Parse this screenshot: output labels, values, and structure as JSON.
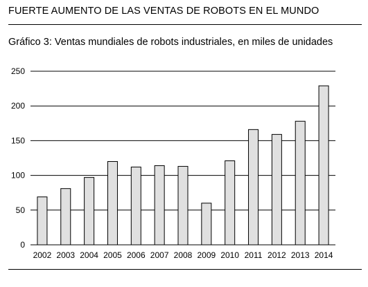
{
  "header": {
    "title": "FUERTE AUMENTO DE LAS VENTAS DE ROBOTS EN EL MUNDO"
  },
  "chart_data": {
    "type": "bar",
    "title": "Gráfico 3: Ventas mundiales de robots industriales, en miles de unidades",
    "xlabel": "",
    "ylabel": "",
    "categories": [
      "2002",
      "2003",
      "2004",
      "2005",
      "2006",
      "2007",
      "2008",
      "2009",
      "2010",
      "2011",
      "2012",
      "2013",
      "2014"
    ],
    "values": [
      69,
      81,
      97,
      120,
      112,
      114,
      113,
      60,
      121,
      166,
      159,
      178,
      229
    ],
    "ylim": [
      0,
      250
    ],
    "yticks": [
      0,
      50,
      100,
      150,
      200,
      250
    ],
    "grid": true,
    "legend": "none",
    "bar_fill": "#e0e0e0",
    "bar_stroke": "#000000"
  }
}
